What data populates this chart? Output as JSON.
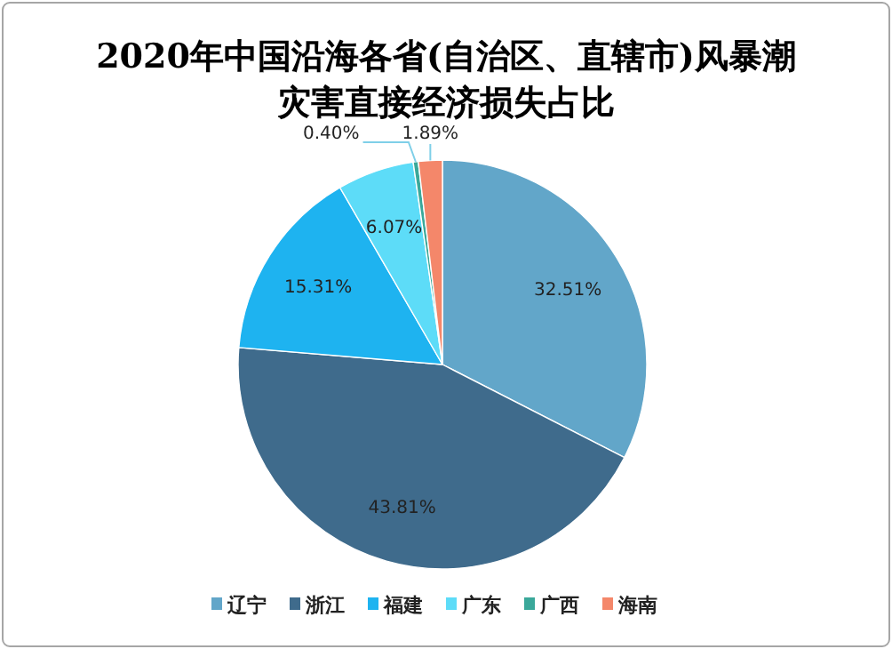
{
  "chart_data": {
    "type": "pie",
    "title": "2020年中国沿海各省(自治区、直辖市)风暴潮灾害直接经济损失占比",
    "categories": [
      "辽宁",
      "浙江",
      "福建",
      "广东",
      "广西",
      "海南"
    ],
    "values": [
      32.51,
      43.81,
      15.31,
      6.07,
      0.4,
      1.89
    ],
    "colors": [
      "#62a6c9",
      "#3f6b8c",
      "#1eb3f0",
      "#5ddcf8",
      "#3aa89a",
      "#f4876a"
    ],
    "value_labels": [
      "32.51%",
      "43.81%",
      "15.31%",
      "6.07%",
      "0.40%",
      "1.89%"
    ],
    "legend": "bottom"
  }
}
